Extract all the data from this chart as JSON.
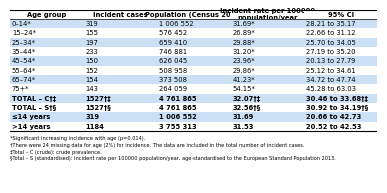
{
  "header": [
    "Age group",
    "Incident cases",
    "Population (Census 2016)",
    "Incident rate per 100000\npopulation/year",
    "95% CI"
  ],
  "rows": [
    [
      "0–14*",
      "319",
      "1 006 552",
      "31.69*",
      "28.21 to 35.17"
    ],
    [
      "15–24*",
      "155",
      "576 452",
      "26.89*",
      "22.66 to 31.12"
    ],
    [
      "25–34*",
      "197",
      "659 410",
      "29.88*",
      "25.70 to 34.05"
    ],
    [
      "35–44*",
      "233",
      "746 881",
      "31.20*",
      "27.19 to 35.20"
    ],
    [
      "45–54*",
      "150",
      "626 045",
      "23.96*",
      "20.13 to 27.79"
    ],
    [
      "55–64*",
      "152",
      "508 958",
      "29.86*",
      "25.12 to 34.61"
    ],
    [
      "65–74*",
      "154",
      "373 508",
      "41.23*",
      "34.72 to 47.74"
    ],
    [
      "75+*",
      "143",
      "264 059",
      "54.15*",
      "45.28 to 63.03"
    ],
    [
      "TOTAL – C†‡",
      "1527†‡",
      "4 761 865",
      "32.07†‡",
      "30.46 to 33.68†‡"
    ],
    [
      "TOTAL – S†§",
      "1527†§",
      "4 761 865",
      "32.56†§",
      "30.92 to 34.19†§"
    ],
    [
      "≤14 years",
      "319",
      "1 006 552",
      "31.69",
      "20.66 to 42.73"
    ],
    [
      ">14 years",
      "1184",
      "3 755 313",
      "31.53",
      "20.52 to 42.53"
    ]
  ],
  "footnotes": [
    "*Significant increasing incidence with age (p=0.014).",
    "†There were 24 missing data for age (2%) for incidence. The data are included in the total number of incident cases.",
    "‡Total – C (crude): crude prevalence.",
    "§Total – S (standardised): incident rate per 100000 population/year, age-standardised to the European Standard Population 2013."
  ],
  "stripe_color": "#cce0f5",
  "white_color": "#ffffff",
  "text_color": "#000000",
  "bold_data_rows": [
    8,
    9,
    10,
    11
  ]
}
